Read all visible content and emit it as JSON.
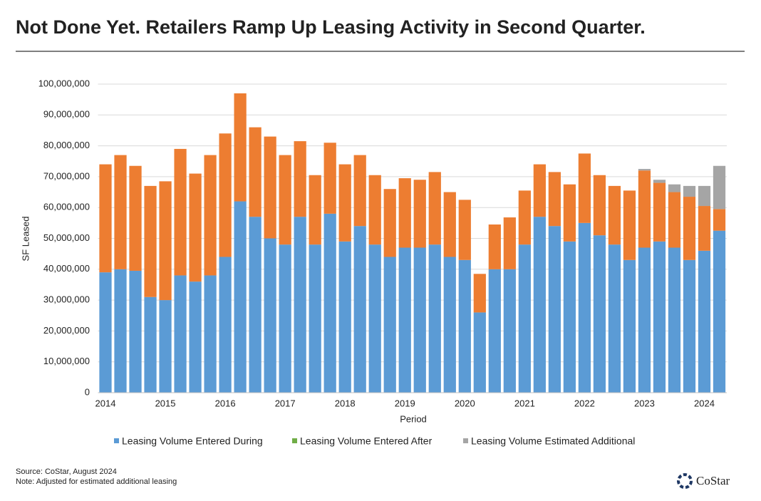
{
  "chart_data": {
    "type": "stacked_bar",
    "title": "Not Done Yet. Retailers Ramp Up Leasing Activity in Second Quarter.",
    "y_label": "SF Leased",
    "x_label": "Period",
    "source": "Source: CoStar, August 2024",
    "note": "Note: Adjusted for estimated additional leasing",
    "brand": "CoStar",
    "categories": [
      "2014",
      null,
      null,
      null,
      "2015",
      null,
      null,
      null,
      "2016",
      null,
      null,
      null,
      "2017",
      null,
      null,
      null,
      "2018",
      null,
      null,
      null,
      "2019",
      null,
      null,
      null,
      "2020",
      null,
      null,
      null,
      "2021",
      null,
      null,
      null,
      "2022",
      null,
      null,
      null,
      "2023",
      null,
      null,
      null,
      "2024",
      null
    ],
    "series": [
      {
        "name": "Leasing Volume Entered During",
        "color": "#5b9bd5",
        "legend_color": "#5b9bd5",
        "values": [
          39000000,
          40000000,
          39500000,
          31000000,
          30000000,
          38000000,
          36000000,
          38000000,
          44000000,
          62000000,
          57000000,
          50000000,
          48000000,
          57000000,
          48000000,
          58000000,
          49000000,
          54000000,
          48000000,
          44000000,
          47000000,
          47000000,
          48000000,
          44000000,
          43000000,
          26000000,
          40000000,
          40000000,
          48000000,
          57000000,
          54000000,
          49000000,
          55000000,
          51000000,
          48000000,
          43000000,
          47000000,
          49000000,
          47000000,
          43000000,
          46000000,
          52500000
        ]
      },
      {
        "name": "Leasing Volume Entered After",
        "color": "#ed7d31",
        "legend_color": "#70ad47",
        "values": [
          35000000,
          37000000,
          34000000,
          36000000,
          38500000,
          41000000,
          35000000,
          39000000,
          40000000,
          35000000,
          29000000,
          33000000,
          29000000,
          24500000,
          22500000,
          23000000,
          25000000,
          23000000,
          22500000,
          22000000,
          22500000,
          22000000,
          23500000,
          21000000,
          19500000,
          12500000,
          14500000,
          16800000,
          17500000,
          17000000,
          17500000,
          18500000,
          22500000,
          19500000,
          19000000,
          22500000,
          25000000,
          19000000,
          18000000,
          20500000,
          14500000,
          7000000
        ]
      },
      {
        "name": "Leasing Volume Estimated Additional",
        "color": "#a5a5a5",
        "legend_color": "#a5a5a5",
        "values": [
          0,
          0,
          0,
          0,
          0,
          0,
          0,
          0,
          0,
          0,
          0,
          0,
          0,
          0,
          0,
          0,
          0,
          0,
          0,
          0,
          0,
          0,
          0,
          0,
          0,
          0,
          0,
          0,
          0,
          0,
          0,
          0,
          0,
          0,
          0,
          0,
          500000,
          1000000,
          2500000,
          3500000,
          6500000,
          14000000
        ]
      }
    ],
    "ylim": [
      0,
      100000000
    ],
    "yticks": [
      0,
      {
        "value": 10000000,
        "label": "10,000,000"
      },
      {
        "value": 20000000,
        "label": "20,000,000"
      },
      {
        "value": 30000000,
        "label": "30,000,000"
      },
      {
        "value": 40000000,
        "label": "40,000,000"
      },
      {
        "value": 50000000,
        "label": "50,000,000"
      },
      {
        "value": 60000000,
        "label": "60,000,000"
      },
      {
        "value": 70000000,
        "label": "70,000,000"
      },
      {
        "value": 80000000,
        "label": "80,000,000"
      },
      {
        "value": 90000000,
        "label": "90,000,000"
      },
      {
        "value": 100000000,
        "label": "100,000,000"
      }
    ],
    "grid": true
  }
}
